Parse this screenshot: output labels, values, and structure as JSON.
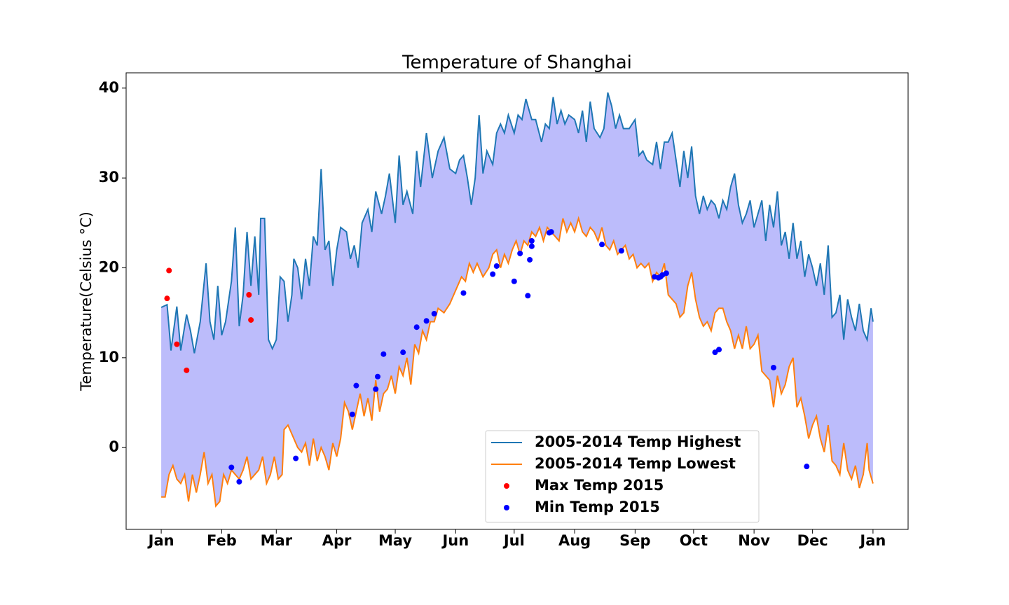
{
  "chart_data": {
    "type": "line",
    "title": "Temperature of Shanghai",
    "ylabel": "Temperature(Celsius °C)",
    "xlim": [
      -18,
      383
    ],
    "ylim": [
      -9.1,
      41.7
    ],
    "xticks": [
      {
        "value": 0,
        "label": "Jan"
      },
      {
        "value": 31,
        "label": "Feb"
      },
      {
        "value": 59,
        "label": "Mar"
      },
      {
        "value": 90,
        "label": "Apr"
      },
      {
        "value": 120,
        "label": "May"
      },
      {
        "value": 151,
        "label": "Jun"
      },
      {
        "value": 181,
        "label": "Jul"
      },
      {
        "value": 212,
        "label": "Aug"
      },
      {
        "value": 243,
        "label": "Sep"
      },
      {
        "value": 273,
        "label": "Oct"
      },
      {
        "value": 304,
        "label": "Nov"
      },
      {
        "value": 334,
        "label": "Dec"
      },
      {
        "value": 365,
        "label": "Jan"
      }
    ],
    "yticks": [
      0,
      10,
      20,
      30,
      40
    ],
    "fill_between": true,
    "fill_color": "#bcbcfb",
    "legend": "lower center",
    "series": [
      {
        "name": "2005-2014 Temp Highest",
        "type": "line",
        "color": "#1f77b4",
        "x": [
          0,
          3,
          5,
          8,
          10,
          13,
          15,
          17,
          20,
          23,
          25,
          27,
          29,
          31,
          33,
          36,
          38,
          40,
          42,
          44,
          46,
          48,
          50,
          51,
          53,
          55,
          57,
          59,
          61,
          63,
          65,
          67,
          68,
          70,
          72,
          74,
          76,
          78,
          80,
          82,
          84,
          86,
          88,
          90,
          92,
          95,
          97,
          99,
          101,
          103,
          106,
          108,
          110,
          113,
          115,
          117,
          120,
          122,
          124,
          126,
          129,
          131,
          133,
          136,
          139,
          142,
          145,
          148,
          151,
          153,
          155,
          157,
          159,
          161,
          163,
          165,
          167,
          170,
          172,
          174,
          176,
          178,
          181,
          183,
          185,
          187,
          190,
          192,
          195,
          197,
          199,
          201,
          203,
          205,
          207,
          209,
          212,
          214,
          216,
          218,
          220,
          222,
          225,
          227,
          229,
          231,
          233,
          235,
          237,
          240,
          243,
          245,
          247,
          249,
          252,
          254,
          256,
          258,
          260,
          262,
          264,
          266,
          268,
          270,
          272,
          274,
          276,
          278,
          280,
          282,
          284,
          286,
          288,
          290,
          292,
          294,
          296,
          298,
          300,
          302,
          304,
          306,
          308,
          310,
          312,
          314,
          316,
          318,
          320,
          322,
          324,
          326,
          328,
          330,
          332,
          334,
          336,
          338,
          340,
          342,
          344,
          346,
          348,
          350,
          352,
          354,
          356,
          358,
          360,
          362,
          364,
          365
        ],
        "values": [
          15.6,
          15.9,
          10.8,
          15.7,
          10.8,
          14.8,
          13,
          10.5,
          14,
          20.5,
          14,
          12,
          18,
          12.5,
          14,
          18.5,
          24.5,
          13.5,
          17,
          24,
          18,
          23.5,
          17,
          25.5,
          25.5,
          12,
          11,
          12,
          19,
          18.5,
          14,
          17,
          21,
          20,
          16.5,
          21,
          18,
          23.5,
          22.5,
          31,
          22,
          23,
          18,
          22,
          24.5,
          24,
          21,
          22.5,
          20,
          25,
          26.5,
          24,
          28.5,
          26,
          28,
          30.5,
          25,
          32.5,
          27,
          28.5,
          26,
          33,
          29,
          35,
          30,
          33,
          34.5,
          31,
          30.5,
          32,
          32.5,
          30,
          27,
          30,
          37,
          30.5,
          33,
          31.5,
          35,
          36,
          35,
          37,
          35,
          37,
          36.5,
          38.8,
          36.5,
          36.5,
          34,
          36,
          35.5,
          39,
          36,
          37.5,
          36,
          37,
          36.5,
          35,
          37.5,
          34,
          38.5,
          35.5,
          34.5,
          35.5,
          39.5,
          38,
          35.5,
          37,
          35.5,
          35.5,
          36.5,
          32.5,
          33,
          32,
          31.5,
          34,
          31,
          34,
          34,
          35,
          32,
          29,
          33,
          30,
          33.5,
          28,
          26,
          28,
          26.5,
          27.5,
          27,
          25.5,
          27.5,
          26.5,
          29,
          30.5,
          27,
          25,
          26,
          27.5,
          24.5,
          26,
          27.5,
          23,
          27,
          24.5,
          28.5,
          22.5,
          24,
          21,
          25,
          21,
          23,
          19,
          21.5,
          20,
          18,
          20.5,
          17,
          22.5,
          14.5,
          15,
          17,
          12,
          16.5,
          14.5,
          13,
          16,
          13,
          12,
          15.5,
          14
        ]
      },
      {
        "name": "2005-2014 Temp Lowest",
        "type": "line",
        "color": "#ff7f0e",
        "x": [
          0,
          2,
          4,
          6,
          8,
          10,
          12,
          14,
          16,
          18,
          20,
          22,
          24,
          26,
          28,
          30,
          32,
          34,
          36,
          38,
          40,
          42,
          44,
          46,
          48,
          50,
          52,
          54,
          56,
          58,
          60,
          62,
          63,
          65,
          68,
          70,
          72,
          74,
          76,
          78,
          80,
          82,
          84,
          86,
          88,
          90,
          92,
          94,
          96,
          98,
          100,
          102,
          104,
          106,
          108,
          110,
          112,
          114,
          116,
          118,
          120,
          122,
          124,
          126,
          128,
          130,
          132,
          134,
          136,
          138,
          140,
          142,
          145,
          148,
          150,
          152,
          154,
          156,
          158,
          160,
          162,
          165,
          168,
          170,
          172,
          174,
          176,
          178,
          180,
          182,
          184,
          186,
          188,
          190,
          192,
          194,
          196,
          198,
          200,
          202,
          204,
          206,
          208,
          210,
          212,
          214,
          216,
          218,
          220,
          222,
          224,
          226,
          228,
          230,
          232,
          234,
          236,
          238,
          240,
          242,
          244,
          246,
          248,
          250,
          252,
          254,
          256,
          258,
          260,
          262,
          264,
          266,
          268,
          270,
          272,
          274,
          276,
          278,
          280,
          282,
          284,
          286,
          288,
          290,
          292,
          294,
          296,
          298,
          300,
          302,
          304,
          306,
          308,
          310,
          312,
          314,
          316,
          318,
          320,
          322,
          324,
          326,
          328,
          330,
          332,
          334,
          336,
          338,
          340,
          342,
          344,
          346,
          348,
          350,
          352,
          354,
          356,
          358,
          360,
          362,
          363,
          365
        ],
        "values": [
          -5.5,
          -5.5,
          -3,
          -2,
          -3.5,
          -4,
          -3,
          -6,
          -3,
          -5,
          -3,
          -0.5,
          -4,
          -3,
          -6.5,
          -6,
          -3,
          -4,
          -2.5,
          -3,
          -3.5,
          -2.5,
          -1,
          -3.5,
          -3,
          -2.5,
          -1,
          -4,
          -3,
          -1,
          -3.5,
          -3,
          2,
          2.5,
          1,
          0,
          -0.5,
          0.5,
          -2,
          1,
          -1.5,
          0,
          -1,
          -2.5,
          0.5,
          -1,
          1,
          5,
          4,
          2,
          4,
          6,
          3.5,
          5.5,
          3,
          7.5,
          4,
          6,
          6.5,
          8,
          6,
          9,
          8,
          10,
          7,
          11.5,
          10.5,
          13,
          12,
          14,
          14,
          15.5,
          15,
          16,
          17,
          18,
          19,
          18.5,
          20.5,
          19.5,
          20.5,
          19,
          20,
          21.5,
          22,
          20,
          21.5,
          20.5,
          22,
          23,
          21.5,
          23,
          22.5,
          24,
          23.5,
          24.5,
          23,
          24.5,
          24,
          23.5,
          23,
          25.5,
          24,
          25,
          24,
          25.5,
          24,
          23.5,
          24.5,
          24,
          23,
          24.5,
          22.5,
          22,
          23,
          21.5,
          22,
          22.5,
          21,
          21.5,
          20,
          20.5,
          20,
          20.5,
          18.5,
          19.5,
          19,
          20.5,
          17,
          16.5,
          16,
          14.5,
          15,
          18,
          19.5,
          16.5,
          14.5,
          13.5,
          14,
          13,
          15,
          15.5,
          15.5,
          14,
          13,
          11,
          12.5,
          11,
          13.5,
          11,
          11.5,
          12.5,
          8.5,
          8,
          7.5,
          4.5,
          8,
          6,
          7,
          9,
          10,
          4.5,
          5.5,
          3.5,
          1,
          2.5,
          3.5,
          1,
          -0.5,
          2.5,
          -1.5,
          -2,
          -3,
          0.5,
          -2.5,
          -3.5,
          -2,
          -4.5,
          -3,
          0.5,
          -2.5,
          -4
        ]
      },
      {
        "name": "Max Temp 2015",
        "type": "scatter",
        "color": "#ff0000",
        "x": [
          3,
          4,
          8,
          13,
          45,
          46
        ],
        "values": [
          16.6,
          19.7,
          11.5,
          8.6,
          17.0,
          14.2
        ]
      },
      {
        "name": "Min Temp 2015",
        "type": "scatter",
        "color": "#0000ff",
        "x": [
          36,
          40,
          69,
          98,
          100,
          110,
          111,
          114,
          124,
          131,
          136,
          140,
          155,
          170,
          172,
          181,
          184,
          188,
          189,
          190,
          190,
          199,
          200,
          226,
          236,
          253,
          255,
          256,
          257,
          259,
          284,
          286,
          314,
          331
        ],
        "values": [
          -2.2,
          -3.8,
          -1.2,
          3.7,
          6.9,
          6.5,
          7.9,
          10.4,
          10.6,
          13.4,
          14.1,
          14.9,
          17.2,
          19.3,
          20.2,
          18.5,
          21.6,
          16.9,
          20.9,
          22.4,
          23.0,
          23.9,
          24.0,
          22.6,
          21.9,
          19.0,
          18.9,
          19.0,
          19.2,
          19.4,
          10.6,
          10.9,
          8.9,
          -2.1
        ]
      }
    ]
  }
}
